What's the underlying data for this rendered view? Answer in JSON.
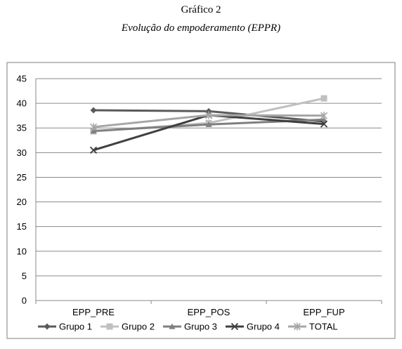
{
  "caption": {
    "title": "Gráfico 2",
    "subtitle": "Evolução do empoderamento (EPPR)"
  },
  "chart_data": {
    "type": "line",
    "title": "",
    "xlabel": "",
    "ylabel": "",
    "categories": [
      "EPP_PRE",
      "EPP_POS",
      "EPP_FUP"
    ],
    "ylim": [
      0,
      45
    ],
    "yticks": [
      0,
      5,
      10,
      15,
      20,
      25,
      30,
      35,
      40,
      45
    ],
    "grid": true,
    "legend_position": "bottom",
    "series": [
      {
        "name": "Grupo 1",
        "values": [
          38.6,
          38.4,
          36.3
        ],
        "color": "#5a5a5a",
        "marker": "diamond"
      },
      {
        "name": "Grupo 2",
        "values": [
          34.3,
          36.0,
          41.0
        ],
        "color": "#c0c0c0",
        "marker": "square"
      },
      {
        "name": "Grupo 3",
        "values": [
          34.4,
          35.7,
          36.7
        ],
        "color": "#7f7f7f",
        "marker": "triangle"
      },
      {
        "name": "Grupo 4",
        "values": [
          30.5,
          37.6,
          35.8
        ],
        "color": "#3f3f3f",
        "marker": "x"
      },
      {
        "name": "TOTAL",
        "values": [
          35.2,
          37.6,
          37.5
        ],
        "color": "#a6a6a6",
        "marker": "asterisk"
      }
    ]
  }
}
